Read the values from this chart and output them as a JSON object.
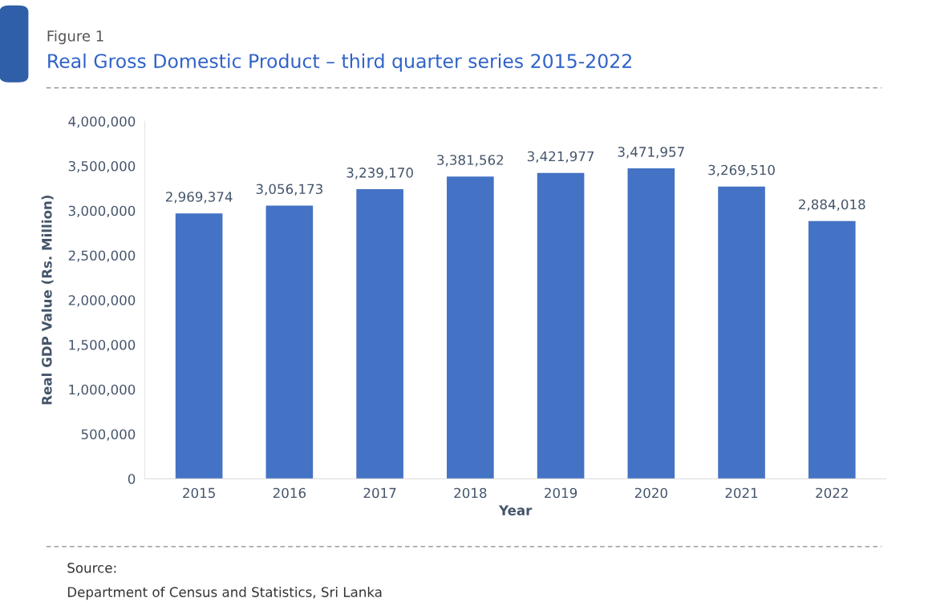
{
  "chart_data": {
    "type": "bar",
    "title": "Real Gross Domestic Product – third quarter series 2015-2022",
    "subtitle": "Figure 1",
    "xlabel": "Year",
    "ylabel": "Real GDP Value (Rs. Million)",
    "categories": [
      "2015",
      "2016",
      "2017",
      "2018",
      "2019",
      "2020",
      "2021",
      "2022"
    ],
    "values": [
      2969374,
      3056173,
      3239170,
      3381562,
      3421977,
      3471957,
      3269510,
      2884018
    ],
    "color": "#4472c4",
    "ylim": [
      0,
      4000000
    ],
    "yticks": [
      {
        "value": 0,
        "label": "0"
      },
      {
        "value": 500000,
        "label": "500,000"
      },
      {
        "value": 1000000,
        "label": "1,000,000"
      },
      {
        "value": 1500000,
        "label": "1,500,000"
      },
      {
        "value": 2000000,
        "label": "2,000,000"
      },
      {
        "value": 2500000,
        "label": "2,500,000"
      },
      {
        "value": 3000000,
        "label": "3,000,000"
      },
      {
        "value": 3500000,
        "label": "3,500,000"
      },
      {
        "value": 4000000,
        "label": "4,000,000"
      }
    ],
    "value_labels": [
      "2,969,374",
      "3,056,173",
      "3,239,170",
      "3,381,562",
      "3,421,977",
      "3,471,957",
      "3,269,510",
      "2,884,018"
    ],
    "annotations": [
      "Source:",
      "Department of Census and Statistics, Sri Lanka"
    ],
    "grid": false
  }
}
